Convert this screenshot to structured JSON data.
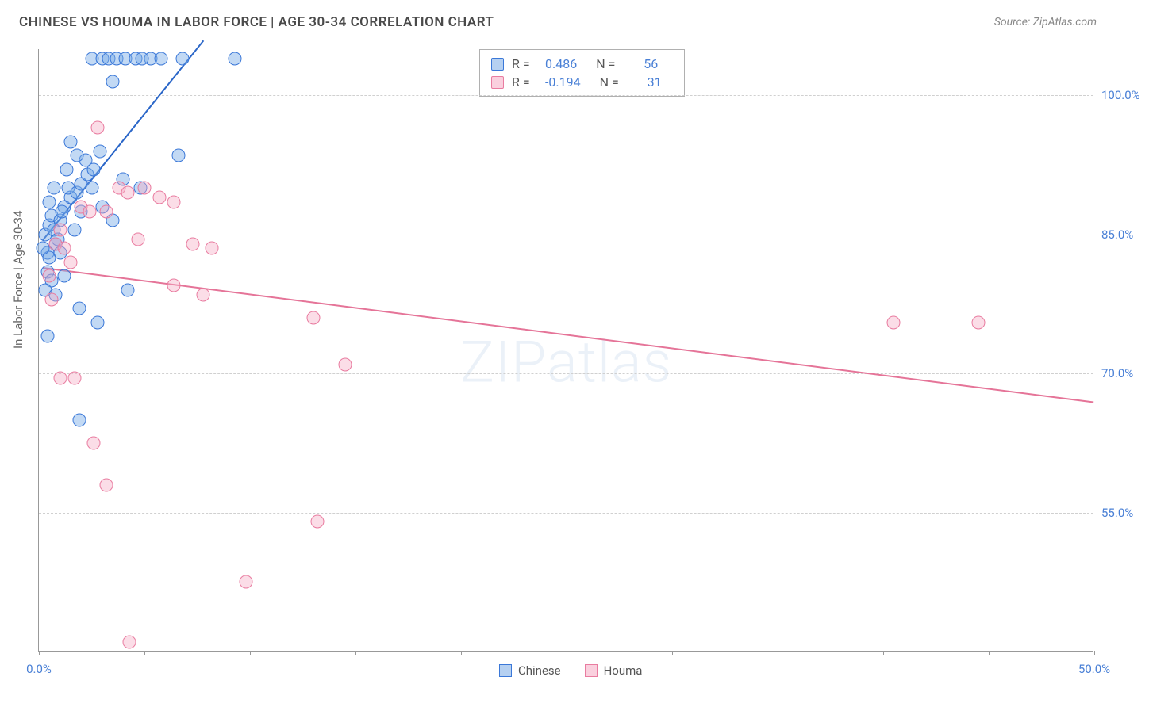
{
  "header": {
    "title": "CHINESE VS HOUMA IN LABOR FORCE | AGE 30-34 CORRELATION CHART",
    "source": "Source: ZipAtlas.com"
  },
  "watermark": "ZIPatlas",
  "chart": {
    "type": "scatter",
    "ylabel": "In Labor Force | Age 30-34",
    "xlim": [
      0,
      50
    ],
    "ylim": [
      40,
      105
    ],
    "xticks": [
      0,
      5,
      10,
      15,
      20,
      25,
      30,
      35,
      40,
      45,
      50
    ],
    "xtick_labels": {
      "0": "0.0%",
      "50": "50.0%"
    },
    "yticks": [
      55,
      70,
      85,
      100
    ],
    "ytick_labels": {
      "55": "55.0%",
      "70": "70.0%",
      "85": "85.0%",
      "100": "100.0%"
    },
    "marker_size": 17,
    "background_color": "#ffffff",
    "grid_color": "#d0d0d0",
    "axis_color": "#999999",
    "colors": {
      "blue_stroke": "#3b78d8",
      "blue_fill": "rgba(120,170,230,0.45)",
      "pink_stroke": "#e97ca0",
      "pink_fill": "rgba(245,170,195,0.40)",
      "tick_label": "#4a80d6"
    },
    "series": [
      {
        "name": "Chinese",
        "color": "blue",
        "regression": {
          "x1": 0.2,
          "y1": 84.5,
          "x2": 7.8,
          "y2": 106.0
        },
        "R": "0.486",
        "N": "56",
        "points": [
          [
            0.3,
            85
          ],
          [
            0.5,
            86
          ],
          [
            0.8,
            84
          ],
          [
            0.4,
            83
          ],
          [
            0.6,
            87
          ],
          [
            1.0,
            86.5
          ],
          [
            1.2,
            88
          ],
          [
            0.7,
            85.5
          ],
          [
            1.5,
            89
          ],
          [
            1.1,
            87.5
          ],
          [
            1.4,
            90
          ],
          [
            1.8,
            89.5
          ],
          [
            0.9,
            84.5
          ],
          [
            0.5,
            82.5
          ],
          [
            0.2,
            83.5
          ],
          [
            0.4,
            81
          ],
          [
            2.0,
            90.5
          ],
          [
            2.3,
            91.5
          ],
          [
            2.2,
            93
          ],
          [
            2.6,
            92
          ],
          [
            2.9,
            94
          ],
          [
            2.5,
            104
          ],
          [
            3.0,
            104
          ],
          [
            3.3,
            104
          ],
          [
            3.7,
            104
          ],
          [
            4.1,
            104
          ],
          [
            4.6,
            104
          ],
          [
            5.3,
            104
          ],
          [
            4.9,
            104
          ],
          [
            5.8,
            104
          ],
          [
            6.8,
            104
          ],
          [
            9.3,
            104
          ],
          [
            3.5,
            101.5
          ],
          [
            1.5,
            95
          ],
          [
            1.8,
            93.5
          ],
          [
            2.5,
            90
          ],
          [
            6.6,
            93.5
          ],
          [
            4.8,
            90
          ],
          [
            4.0,
            91
          ],
          [
            0.6,
            80
          ],
          [
            0.3,
            79
          ],
          [
            0.8,
            78.5
          ],
          [
            1.2,
            80.5
          ],
          [
            1.7,
            85.5
          ],
          [
            1.0,
            83
          ],
          [
            4.2,
            79
          ],
          [
            1.9,
            77
          ],
          [
            2.8,
            75.5
          ],
          [
            0.4,
            74
          ],
          [
            1.9,
            65
          ],
          [
            3.5,
            86.5
          ],
          [
            2.0,
            87.5
          ],
          [
            0.5,
            88.5
          ],
          [
            3.0,
            88
          ],
          [
            1.3,
            92
          ],
          [
            0.7,
            90
          ]
        ]
      },
      {
        "name": "Houma",
        "color": "pink",
        "regression": {
          "x1": 0.2,
          "y1": 81.5,
          "x2": 50.0,
          "y2": 67.0
        },
        "R": "-0.194",
        "N": "31",
        "points": [
          [
            0.8,
            84
          ],
          [
            1.2,
            83.5
          ],
          [
            1.5,
            82
          ],
          [
            0.5,
            80.5
          ],
          [
            1.0,
            85.5
          ],
          [
            2.0,
            88
          ],
          [
            2.4,
            87.5
          ],
          [
            3.2,
            87.5
          ],
          [
            3.8,
            90
          ],
          [
            4.2,
            89.5
          ],
          [
            5.0,
            90
          ],
          [
            5.7,
            89
          ],
          [
            7.3,
            84
          ],
          [
            6.4,
            88.5
          ],
          [
            8.2,
            83.5
          ],
          [
            2.8,
            96.5
          ],
          [
            4.7,
            84.5
          ],
          [
            6.4,
            79.5
          ],
          [
            7.8,
            78.5
          ],
          [
            13.0,
            76
          ],
          [
            14.5,
            71
          ],
          [
            2.6,
            62.5
          ],
          [
            1.7,
            69.5
          ],
          [
            1.0,
            69.5
          ],
          [
            3.2,
            58
          ],
          [
            9.8,
            47.5
          ],
          [
            13.2,
            54
          ],
          [
            4.3,
            41
          ],
          [
            40.5,
            75.5
          ],
          [
            44.5,
            75.5
          ],
          [
            0.6,
            78
          ]
        ]
      }
    ],
    "legend_bottom": [
      {
        "label": "Chinese",
        "color": "blue"
      },
      {
        "label": "Houma",
        "color": "pink"
      }
    ]
  }
}
